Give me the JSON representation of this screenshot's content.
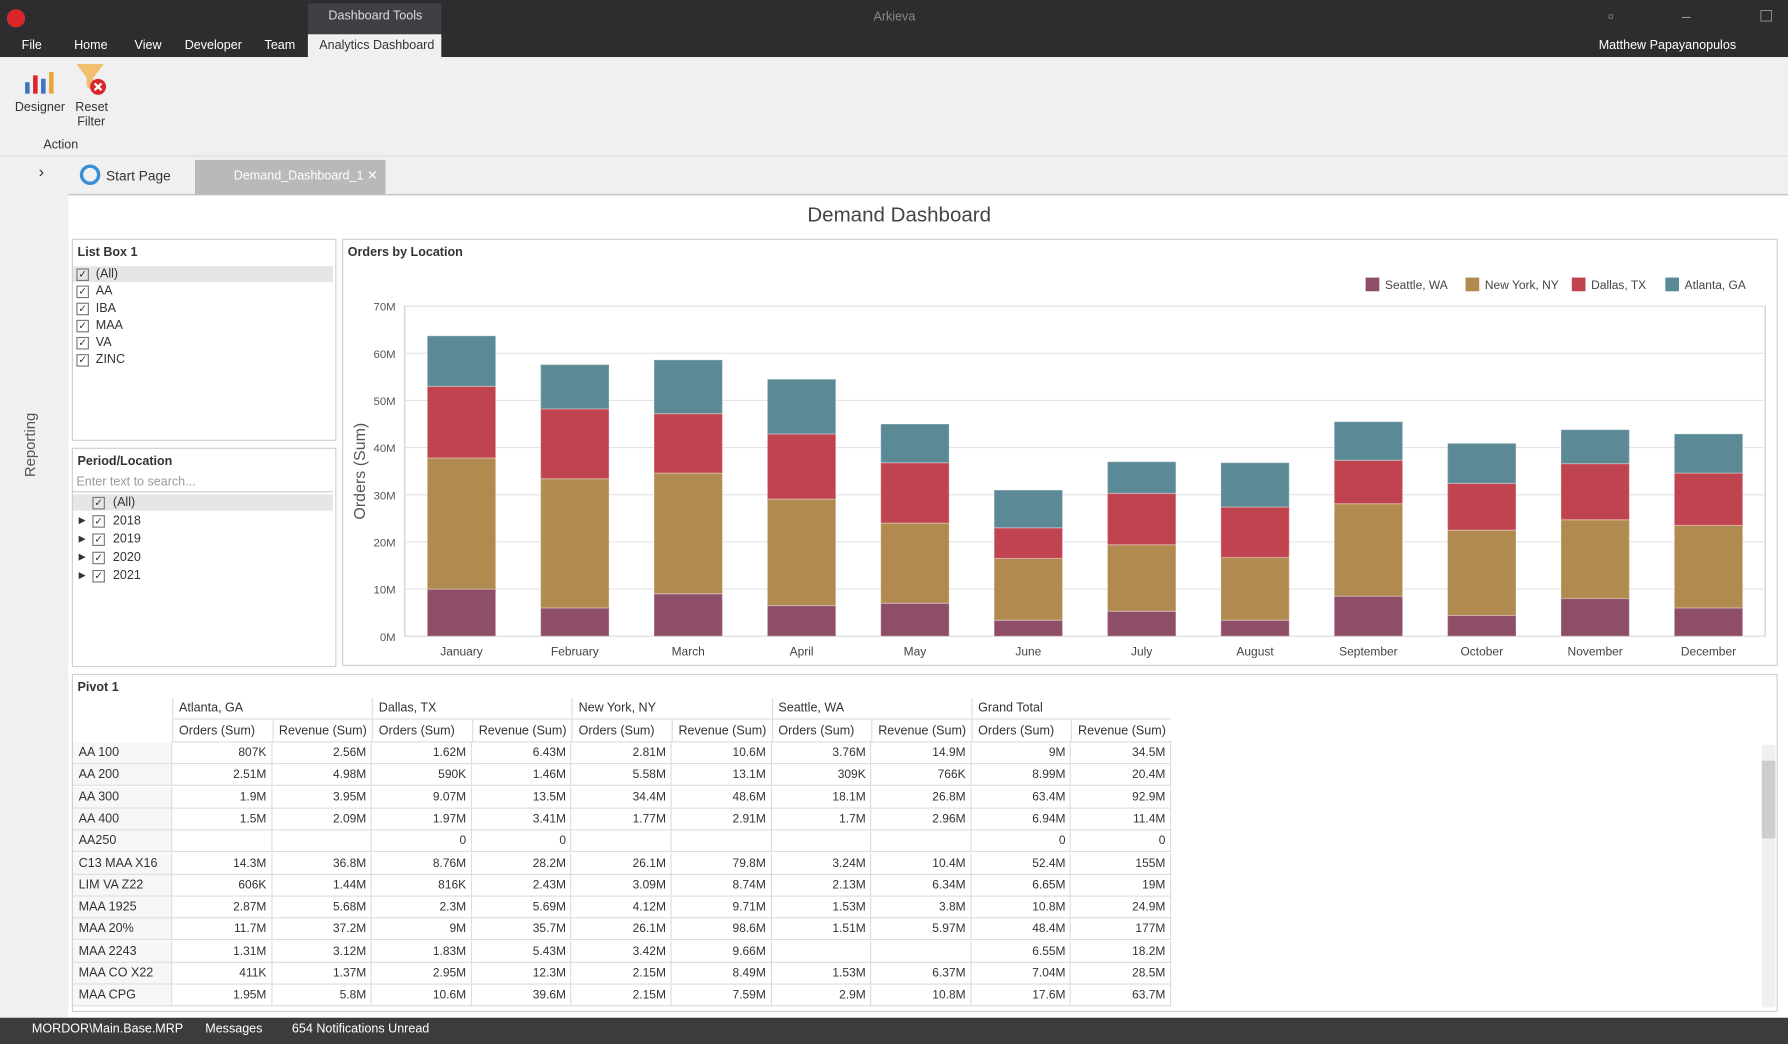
{
  "window": {
    "app_name": "Arkieva",
    "context_tab": "Dashboard Tools",
    "user": "Matthew Papayanopulos",
    "menu": [
      "File",
      "Home",
      "View",
      "Developer",
      "Team",
      "Analytics Dashboard"
    ]
  },
  "ribbon": {
    "buttons": [
      "Designer",
      "Reset Filter"
    ],
    "group": "Action"
  },
  "doc_tabs": [
    "Start Page",
    "Demand_Dashboard_1"
  ],
  "sidebar": "Reporting",
  "dashboard_title": "Demand Dashboard",
  "list_box": {
    "title": "List Box 1",
    "items": [
      "(All)",
      "AA",
      "IBA",
      "MAA",
      "VA",
      "ZINC"
    ]
  },
  "period_location": {
    "title": "Period/Location",
    "search_placeholder": "Enter text to search...",
    "items": [
      "(All)",
      "2018",
      "2019",
      "2020",
      "2021"
    ]
  },
  "chart_data": {
    "type": "stacked-bar",
    "title": "Orders by Location",
    "y_label": "Orders (Sum)",
    "legend": "top-right",
    "grid": true,
    "categories": [
      "January",
      "February",
      "March",
      "April",
      "May",
      "June",
      "July",
      "August",
      "September",
      "October",
      "November",
      "December"
    ],
    "series": [
      {
        "name": "Seattle, WA",
        "color": "#8e4e68",
        "values": [
          10000000,
          6000000,
          9000000,
          6500000,
          7000000,
          3400000,
          5300000,
          3400000,
          8500000,
          4400000,
          8000000,
          6000000
        ]
      },
      {
        "name": "New York, NY",
        "color": "#b08a4f",
        "values": [
          27800000,
          27400000,
          25600000,
          22600000,
          17000000,
          13100000,
          14100000,
          13300000,
          19600000,
          18100000,
          16700000,
          17500000
        ]
      },
      {
        "name": "Dallas, TX",
        "color": "#c0444f",
        "values": [
          15200000,
          14800000,
          12600000,
          13800000,
          12800000,
          6500000,
          10900000,
          10700000,
          9200000,
          9900000,
          11900000,
          11100000
        ]
      },
      {
        "name": "Atlanta, GA",
        "color": "#5b8a96",
        "values": [
          10700000,
          9400000,
          11400000,
          11600000,
          8200000,
          8000000,
          6700000,
          9400000,
          8200000,
          8500000,
          7200000,
          8300000
        ]
      }
    ],
    "ylim": [
      0,
      70000000
    ],
    "yticks": [
      {
        "value": 0,
        "label": "0M"
      },
      {
        "value": 10000000,
        "label": "10M"
      },
      {
        "value": 20000000,
        "label": "20M"
      },
      {
        "value": 30000000,
        "label": "30M"
      },
      {
        "value": 40000000,
        "label": "40M"
      },
      {
        "value": 50000000,
        "label": "50M"
      },
      {
        "value": 60000000,
        "label": "60M"
      },
      {
        "value": 70000000,
        "label": "70M"
      }
    ]
  },
  "pivot": {
    "title": "Pivot 1",
    "columns": [
      "Atlanta, GA",
      "Dallas, TX",
      "New York, NY",
      "Seattle, WA",
      "Grand Total"
    ],
    "measures": [
      "Orders (Sum)",
      "Revenue (Sum)"
    ],
    "rows": [
      [
        "AA 100",
        "807K",
        "2.56M",
        "1.62M",
        "6.43M",
        "2.81M",
        "10.6M",
        "3.76M",
        "14.9M",
        "9M",
        "34.5M"
      ],
      [
        "AA 200",
        "2.51M",
        "4.98M",
        "590K",
        "1.46M",
        "5.58M",
        "13.1M",
        "309K",
        "766K",
        "8.99M",
        "20.4M"
      ],
      [
        "AA 300",
        "1.9M",
        "3.95M",
        "9.07M",
        "13.5M",
        "34.4M",
        "48.6M",
        "18.1M",
        "26.8M",
        "63.4M",
        "92.9M"
      ],
      [
        "AA 400",
        "1.5M",
        "2.09M",
        "1.97M",
        "3.41M",
        "1.77M",
        "2.91M",
        "1.7M",
        "2.96M",
        "6.94M",
        "11.4M"
      ],
      [
        "AA250",
        null,
        null,
        "0",
        "0",
        null,
        null,
        null,
        null,
        "0",
        "0"
      ],
      [
        "C13 MAA X16",
        "14.3M",
        "36.8M",
        "8.76M",
        "28.2M",
        "26.1M",
        "79.8M",
        "3.24M",
        "10.4M",
        "52.4M",
        "155M"
      ],
      [
        "LIM VA Z22",
        "606K",
        "1.44M",
        "816K",
        "2.43M",
        "3.09M",
        "8.74M",
        "2.13M",
        "6.34M",
        "6.65M",
        "19M"
      ],
      [
        "MAA 1925",
        "2.87M",
        "5.68M",
        "2.3M",
        "5.69M",
        "4.12M",
        "9.71M",
        "1.53M",
        "3.8M",
        "10.8M",
        "24.9M"
      ],
      [
        "MAA 20%",
        "11.7M",
        "37.2M",
        "9M",
        "35.7M",
        "26.1M",
        "98.6M",
        "1.51M",
        "5.97M",
        "48.4M",
        "177M"
      ],
      [
        "MAA 2243",
        "1.31M",
        "3.12M",
        "1.83M",
        "5.43M",
        "3.42M",
        "9.66M",
        null,
        null,
        "6.55M",
        "18.2M"
      ],
      [
        "MAA CO X22",
        "411K",
        "1.37M",
        "2.95M",
        "12.3M",
        "2.15M",
        "8.49M",
        "1.53M",
        "6.37M",
        "7.04M",
        "28.5M"
      ],
      [
        "MAA CPG",
        "1.95M",
        "5.8M",
        "10.6M",
        "39.6M",
        "2.15M",
        "7.59M",
        "2.9M",
        "10.8M",
        "17.6M",
        "63.7M"
      ]
    ]
  },
  "status_bar": [
    "MORDOR\\Main.Base.MRP",
    "Messages",
    "654 Notifications Unread"
  ]
}
